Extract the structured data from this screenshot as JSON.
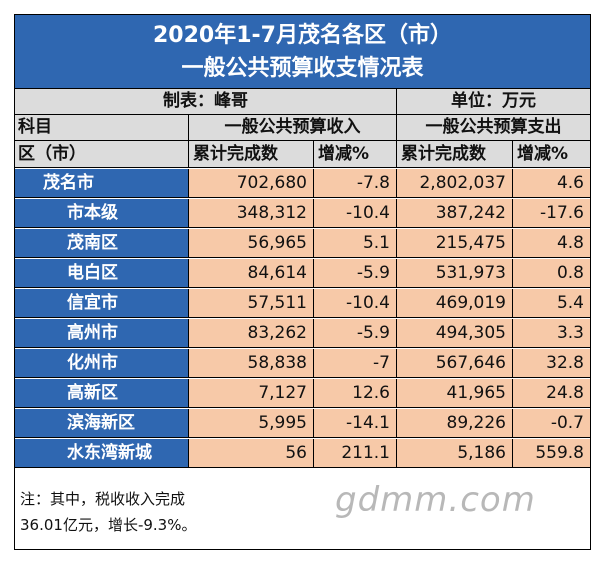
{
  "title": {
    "line1": "2020年1-7月茂名各区（市）",
    "line2": "一般公共预算收支情况表"
  },
  "meta": {
    "maker": "制表：峰哥",
    "unit": "单位：万元"
  },
  "header": {
    "subject": "科目",
    "revenue_group": "一般公共预算收入",
    "expenditure_group": "一般公共预算支出",
    "district": "区（市）",
    "revenue_cumulative": "累计完成数",
    "revenue_change": "增减%",
    "expenditure_cumulative": "累计完成数",
    "expenditure_change": "增减%"
  },
  "rows": [
    {
      "name": "茂名市",
      "rev": "702,680",
      "rev_pct": "-7.8",
      "exp": "2,802,037",
      "exp_pct": "4.6"
    },
    {
      "name": "市本级",
      "rev": "348,312",
      "rev_pct": "-10.4",
      "exp": "387,242",
      "exp_pct": "-17.6"
    },
    {
      "name": "茂南区",
      "rev": "56,965",
      "rev_pct": "5.1",
      "exp": "215,475",
      "exp_pct": "4.8"
    },
    {
      "name": "电白区",
      "rev": "84,614",
      "rev_pct": "-5.9",
      "exp": "531,973",
      "exp_pct": "0.8"
    },
    {
      "name": "信宜市",
      "rev": "57,511",
      "rev_pct": "-10.4",
      "exp": "469,019",
      "exp_pct": "5.4"
    },
    {
      "name": "高州市",
      "rev": "83,262",
      "rev_pct": "-5.9",
      "exp": "494,305",
      "exp_pct": "3.3"
    },
    {
      "name": "化州市",
      "rev": "58,838",
      "rev_pct": "-7",
      "exp": "567,646",
      "exp_pct": "32.8"
    },
    {
      "name": "高新区",
      "rev": "7,127",
      "rev_pct": "12.6",
      "exp": "41,965",
      "exp_pct": "24.8"
    },
    {
      "name": "滨海新区",
      "rev": "5,995",
      "rev_pct": "-14.1",
      "exp": "89,226",
      "exp_pct": "-0.7"
    },
    {
      "name": "水东湾新城",
      "rev": "56",
      "rev_pct": "211.1",
      "exp": "5,186",
      "exp_pct": "559.8"
    }
  ],
  "note": {
    "line1": "注：其中，税收收入完成",
    "line2": "36.01亿元，增长-9.3%。"
  },
  "watermark": "gdmm.com"
}
